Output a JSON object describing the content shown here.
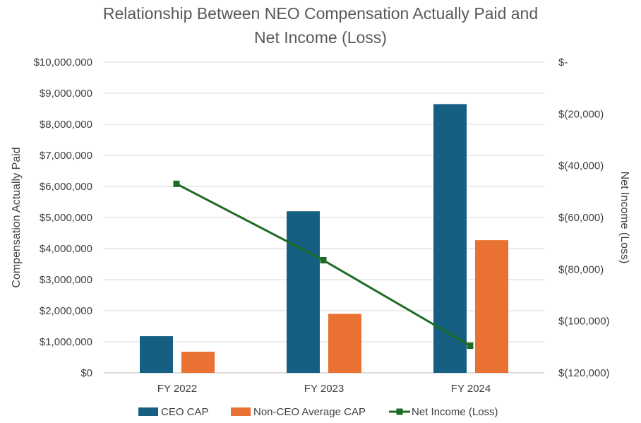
{
  "chart_data": {
    "type": "bar",
    "title": "Relationship Between NEO Compensation Actually Paid and Net Income (Loss)",
    "title_lines": [
      "Relationship Between NEO Compensation Actually Paid and",
      "Net Income (Loss)"
    ],
    "ylabel": "Compensation Actually Paid",
    "y2label": "Net Income (Loss)",
    "categories": [
      "FY 2022",
      "FY 2023",
      "FY 2024"
    ],
    "ylim": [
      0,
      10000000
    ],
    "y_ticks": [
      0,
      1000000,
      2000000,
      3000000,
      4000000,
      5000000,
      6000000,
      7000000,
      8000000,
      9000000,
      10000000
    ],
    "y_tick_labels": [
      "$0",
      "$1,000,000",
      "$2,000,000",
      "$3,000,000",
      "$4,000,000",
      "$5,000,000",
      "$6,000,000",
      "$7,000,000",
      "$8,000,000",
      "$9,000,000",
      "$10,000,000"
    ],
    "y2lim": [
      -120000,
      0
    ],
    "y2_ticks": [
      0,
      -20000,
      -40000,
      -60000,
      -80000,
      -100000,
      -120000
    ],
    "y2_tick_labels": [
      "$-",
      "$(20,000)",
      "$(40,000)",
      "$(60,000)",
      "$(80,000)",
      "$(100,000)",
      "$(120,000)"
    ],
    "grid": true,
    "legend_position": "bottom",
    "series": [
      {
        "name": "CEO CAP",
        "kind": "bar",
        "axis": "left",
        "color": "#156082",
        "values": [
          1180000,
          5200000,
          8650000
        ]
      },
      {
        "name": "Non-CEO Average CAP",
        "kind": "bar",
        "axis": "left",
        "color": "#E97132",
        "values": [
          680000,
          1900000,
          4270000
        ]
      },
      {
        "name": "Net Income (Loss)",
        "kind": "line",
        "axis": "right",
        "color": "#1E6B24",
        "values": [
          -47000,
          -76500,
          -109500
        ]
      }
    ]
  }
}
